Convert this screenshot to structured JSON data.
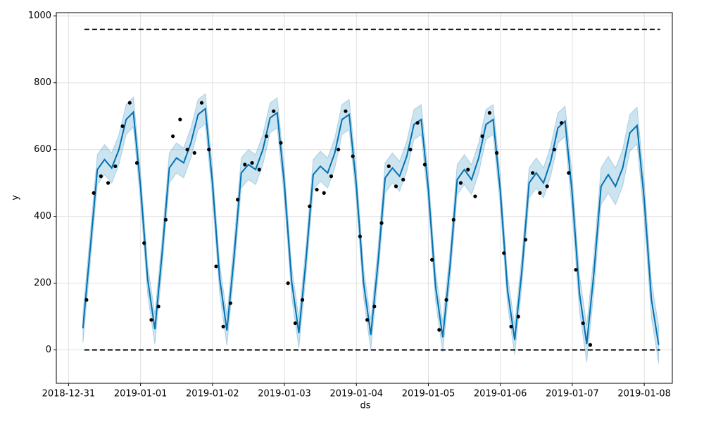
{
  "chart_data": {
    "type": "line",
    "xlabel": "ds",
    "ylabel": "y",
    "xlim": [
      -0.17,
      8.39
    ],
    "ylim": [
      -100,
      1010
    ],
    "xticks": [
      {
        "value": 0,
        "label": "2018-12-31"
      },
      {
        "value": 1,
        "label": "2019-01-01"
      },
      {
        "value": 2,
        "label": "2019-01-02"
      },
      {
        "value": 3,
        "label": "2019-01-03"
      },
      {
        "value": 4,
        "label": "2019-01-04"
      },
      {
        "value": 5,
        "label": "2019-01-05"
      },
      {
        "value": 6,
        "label": "2019-01-06"
      },
      {
        "value": 7,
        "label": "2019-01-07"
      },
      {
        "value": 8,
        "label": "2019-01-08"
      }
    ],
    "yticks": [
      0,
      200,
      400,
      600,
      800,
      1000
    ],
    "grid": true,
    "series": [
      {
        "style": "forecast",
        "color": "#0072B2",
        "x": [
          0.2,
          0.3,
          0.4,
          0.5,
          0.6,
          0.7,
          0.8,
          0.9,
          1.0,
          1.1,
          1.2,
          1.3,
          1.4,
          1.5,
          1.6,
          1.7,
          1.8,
          1.9,
          2.0,
          2.1,
          2.2,
          2.3,
          2.4,
          2.5,
          2.6,
          2.7,
          2.8,
          2.9,
          3.0,
          3.1,
          3.2,
          3.3,
          3.4,
          3.5,
          3.6,
          3.7,
          3.8,
          3.9,
          4.0,
          4.1,
          4.2,
          4.3,
          4.4,
          4.5,
          4.6,
          4.7,
          4.8,
          4.9,
          5.0,
          5.1,
          5.2,
          5.3,
          5.4,
          5.5,
          5.6,
          5.7,
          5.8,
          5.9,
          6.0,
          6.1,
          6.2,
          6.3,
          6.4,
          6.5,
          6.6,
          6.7,
          6.8,
          6.9,
          7.0,
          7.1,
          7.2,
          7.3,
          7.4,
          7.5,
          7.6,
          7.7,
          7.8,
          7.9,
          8.0,
          8.1,
          8.2
        ],
        "values": [
          65,
          300,
          540,
          570,
          545,
          600,
          690,
          712,
          490,
          210,
          62,
          290,
          545,
          575,
          560,
          620,
          705,
          722,
          500,
          215,
          58,
          280,
          530,
          555,
          540,
          600,
          695,
          710,
          495,
          205,
          50,
          270,
          525,
          550,
          530,
          590,
          690,
          705,
          490,
          200,
          45,
          260,
          515,
          545,
          520,
          580,
          675,
          690,
          480,
          190,
          38,
          250,
          510,
          540,
          510,
          575,
          675,
          690,
          475,
          180,
          30,
          240,
          500,
          530,
          500,
          565,
          665,
          685,
          465,
          170,
          18,
          230,
          490,
          525,
          490,
          545,
          650,
          672,
          450,
          150,
          15
        ],
        "upper": [
          110,
          345,
          585,
          615,
          590,
          645,
          735,
          757,
          535,
          255,
          107,
          335,
          590,
          620,
          605,
          665,
          750,
          767,
          545,
          260,
          103,
          325,
          575,
          600,
          585,
          645,
          740,
          755,
          540,
          250,
          95,
          315,
          570,
          595,
          575,
          635,
          735,
          750,
          535,
          245,
          90,
          305,
          560,
          590,
          565,
          625,
          720,
          735,
          525,
          235,
          83,
          295,
          555,
          585,
          555,
          620,
          720,
          735,
          520,
          225,
          75,
          285,
          545,
          575,
          545,
          610,
          710,
          730,
          520,
          225,
          73,
          285,
          545,
          580,
          545,
          600,
          705,
          727,
          505,
          205,
          70
        ],
        "lower": [
          20,
          255,
          495,
          525,
          500,
          555,
          645,
          667,
          445,
          165,
          17,
          245,
          500,
          530,
          515,
          575,
          660,
          677,
          455,
          170,
          13,
          235,
          485,
          510,
          495,
          555,
          650,
          665,
          450,
          160,
          5,
          225,
          480,
          505,
          485,
          545,
          645,
          660,
          445,
          155,
          0,
          215,
          470,
          500,
          475,
          535,
          630,
          645,
          435,
          145,
          -7,
          205,
          465,
          495,
          465,
          530,
          630,
          645,
          430,
          135,
          -15,
          195,
          455,
          485,
          455,
          520,
          620,
          640,
          410,
          115,
          -37,
          175,
          435,
          470,
          435,
          490,
          595,
          617,
          395,
          95,
          -40
        ]
      },
      {
        "style": "points",
        "color": "#000000",
        "x": [
          0.25,
          0.35,
          0.45,
          0.55,
          0.65,
          0.75,
          0.85,
          0.95,
          1.05,
          1.15,
          1.25,
          1.35,
          1.45,
          1.55,
          1.65,
          1.75,
          1.85,
          1.95,
          2.05,
          2.15,
          2.25,
          2.35,
          2.45,
          2.55,
          2.65,
          2.75,
          2.85,
          2.95,
          3.05,
          3.15,
          3.25,
          3.35,
          3.45,
          3.55,
          3.65,
          3.75,
          3.85,
          3.95,
          4.05,
          4.15,
          4.25,
          4.35,
          4.45,
          4.55,
          4.65,
          4.75,
          4.85,
          4.95,
          5.05,
          5.15,
          5.25,
          5.35,
          5.45,
          5.55,
          5.65,
          5.75,
          5.85,
          5.95,
          6.05,
          6.15,
          6.25,
          6.35,
          6.45,
          6.55,
          6.65,
          6.75,
          6.85,
          6.95,
          7.05,
          7.15,
          7.25
        ],
        "values": [
          150,
          470,
          520,
          500,
          550,
          670,
          740,
          560,
          320,
          90,
          130,
          390,
          640,
          690,
          600,
          590,
          740,
          600,
          250,
          70,
          140,
          450,
          555,
          560,
          540,
          640,
          715,
          620,
          200,
          80,
          150,
          430,
          480,
          470,
          520,
          600,
          715,
          580,
          340,
          90,
          130,
          380,
          550,
          490,
          510,
          600,
          680,
          555,
          270,
          60,
          150,
          390,
          500,
          540,
          460,
          640,
          710,
          590,
          290,
          70,
          100,
          330,
          530,
          470,
          490,
          600,
          680,
          530,
          240,
          80,
          15
        ]
      },
      {
        "style": "dashed",
        "color": "#000000",
        "x": [
          0.22,
          8.22
        ],
        "values": [
          960,
          960
        ]
      },
      {
        "style": "dashed",
        "color": "#000000",
        "x": [
          0.22,
          8.22
        ],
        "values": [
          0,
          0
        ]
      }
    ]
  }
}
